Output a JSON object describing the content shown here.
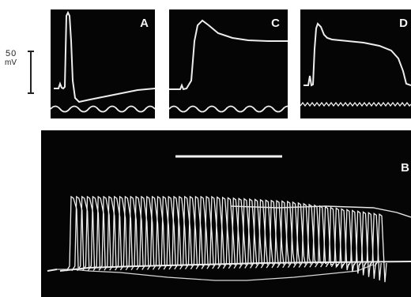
{
  "scale_bar": {
    "value": "50",
    "unit": "mV"
  },
  "panels": {
    "a": {
      "label": "A"
    },
    "c": {
      "label": "C"
    },
    "d": {
      "label": "D"
    },
    "b": {
      "label": "B"
    }
  }
}
